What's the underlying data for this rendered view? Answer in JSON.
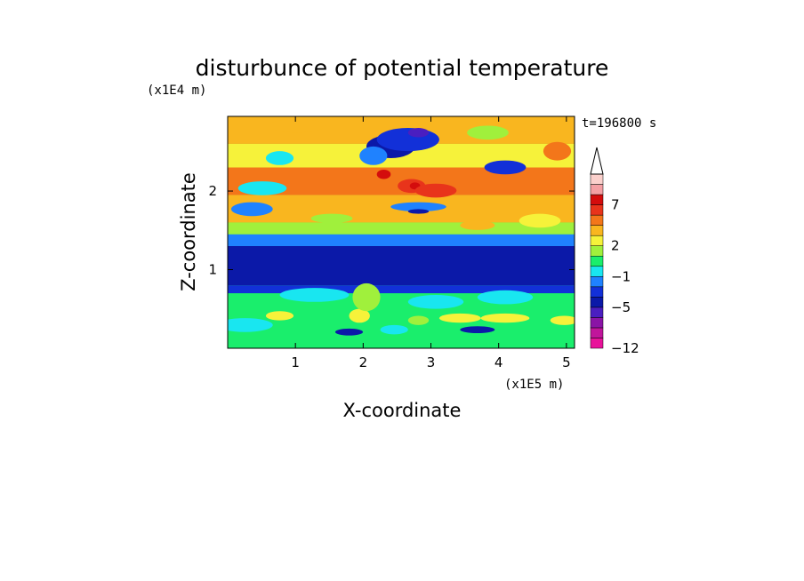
{
  "chart_data": {
    "type": "heatmap",
    "title": "disturbunce of potential temperature",
    "xlabel": "X-coordinate",
    "ylabel": "Z-coordinate",
    "x_unit": "(x1E5 m)",
    "y_unit": "(x1E4 m)",
    "time_label": "t=196800 s",
    "xlim": [
      0,
      5.12
    ],
    "ylim": [
      0,
      2.95
    ],
    "x_ticks": [
      1,
      2,
      3,
      4,
      5
    ],
    "y_ticks": [
      1,
      2
    ],
    "x_tick_labels": [
      "1",
      "2",
      "3",
      "4",
      "5"
    ],
    "y_tick_labels": [
      "1",
      "2"
    ],
    "colorbar": {
      "colors": [
        "#e8129a",
        "#c0159b",
        "#8a14a6",
        "#4a1ec0",
        "#0b19a8",
        "#1230d8",
        "#1f82ff",
        "#19e6f0",
        "#1aee6c",
        "#a0f03c",
        "#f6f23a",
        "#f9b61f",
        "#f3761a",
        "#e8341b",
        "#d40d0d",
        "#f4a0a4",
        "#fbd0cc"
      ],
      "tick_labels": [
        "-12",
        "-5",
        "-1",
        "2",
        "7"
      ],
      "tick_levels": [
        0,
        4,
        7,
        10,
        14
      ],
      "extend_top": true
    },
    "layers": [
      {
        "z": [
          0.05,
          0.7
        ],
        "level": 8
      },
      {
        "z": [
          0.7,
          0.8
        ],
        "level": 5
      },
      {
        "z": [
          0.8,
          1.3
        ],
        "level": 4
      },
      {
        "z": [
          1.3,
          1.45
        ],
        "level": 6
      },
      {
        "z": [
          1.45,
          1.6
        ],
        "level": 9
      },
      {
        "z": [
          1.6,
          1.95
        ],
        "level": 11
      },
      {
        "z": [
          1.95,
          2.3
        ],
        "level": 12
      },
      {
        "z": [
          2.3,
          2.6
        ],
        "level": 10
      },
      {
        "z": [
          2.6,
          2.95
        ],
        "level": 11
      }
    ]
  }
}
